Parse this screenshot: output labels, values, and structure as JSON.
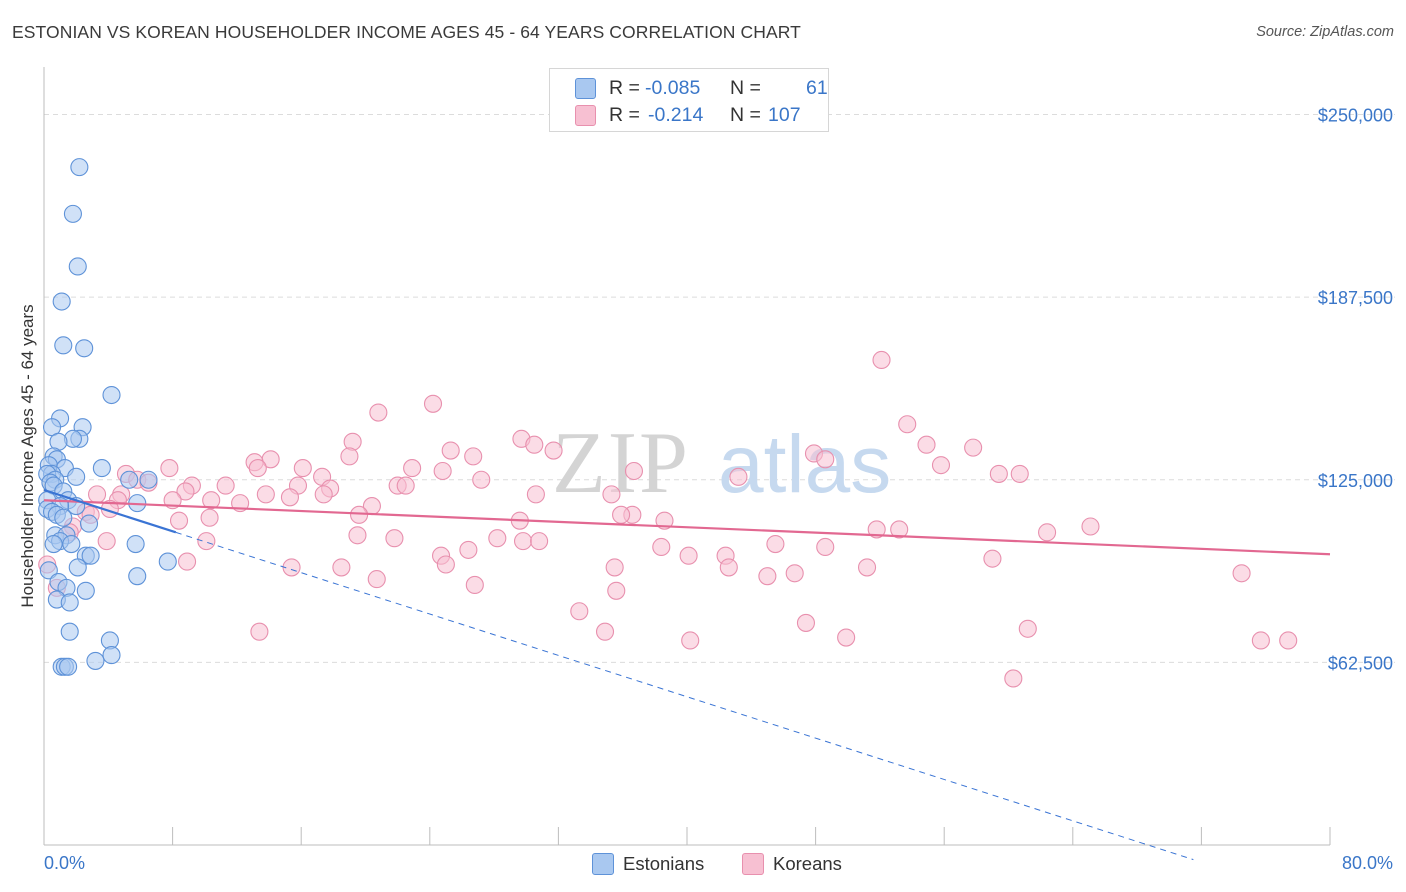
{
  "title": "ESTONIAN VS KOREAN HOUSEHOLDER INCOME AGES 45 - 64 YEARS CORRELATION CHART",
  "source": "Source: ZipAtlas.com",
  "watermark": {
    "zip": "ZIP",
    "atlas": "atlas"
  },
  "legend_top": {
    "rows": [
      {
        "r_label": "R =",
        "r_value": "-0.085",
        "n_label": "N =",
        "n_value": "61"
      },
      {
        "r_label": "R =",
        "r_value": "-0.214",
        "n_label": "N =",
        "n_value": "107"
      }
    ]
  },
  "legend_bottom": {
    "estonians": "Estonians",
    "koreans": "Koreans"
  },
  "colors": {
    "estonian_fill": "#a9c8f0",
    "estonian_stroke": "#5e92d8",
    "estonian_line": "#3a74d4",
    "korean_fill": "#f7c0d2",
    "korean_stroke": "#e890ae",
    "korean_line": "#e26891",
    "tick_label": "#3a76c8",
    "grid": "#dcdcdc"
  },
  "chart_data": {
    "type": "scatter",
    "title": "ESTONIAN VS KOREAN HOUSEHOLDER INCOME AGES 45 - 64 YEARS CORRELATION CHART",
    "xlabel": "",
    "ylabel": "Householder Income Ages 45 - 64 years",
    "xlim": [
      0,
      80
    ],
    "ylim": [
      0,
      262500
    ],
    "x_tick_labels": [
      "0.0%",
      "80.0%"
    ],
    "y_ticks": [
      62500,
      125000,
      187500,
      250000
    ],
    "y_tick_labels": [
      "$62,500",
      "$125,000",
      "$187,500",
      "$250,000"
    ],
    "grid": true,
    "legend_position": "top-center",
    "series": [
      {
        "name": "Estonians",
        "r": -0.085,
        "n": 61,
        "trend_solid": {
          "x": [
            0,
            8.2
          ],
          "y": [
            121500,
            107000
          ]
        },
        "trend_dashed": {
          "x": [
            8.2,
            71.5
          ],
          "y": [
            107000,
            -5000
          ]
        },
        "points": [
          [
            2.2,
            232000
          ],
          [
            1.8,
            216000
          ],
          [
            2.1,
            198000
          ],
          [
            1.1,
            186000
          ],
          [
            1.2,
            171000
          ],
          [
            2.5,
            170000
          ],
          [
            4.2,
            154000
          ],
          [
            1.0,
            146000
          ],
          [
            0.5,
            143000
          ],
          [
            2.4,
            143000
          ],
          [
            2.2,
            139000
          ],
          [
            1.8,
            139000
          ],
          [
            0.9,
            138000
          ],
          [
            0.6,
            133000
          ],
          [
            0.8,
            132000
          ],
          [
            0.3,
            130000
          ],
          [
            1.3,
            129000
          ],
          [
            3.6,
            129000
          ],
          [
            0.5,
            127000
          ],
          [
            0.2,
            127000
          ],
          [
            2.0,
            126000
          ],
          [
            0.7,
            125000
          ],
          [
            5.3,
            125000
          ],
          [
            6.5,
            125000
          ],
          [
            0.4,
            124000
          ],
          [
            0.6,
            123000
          ],
          [
            1.2,
            121000
          ],
          [
            0.2,
            118000
          ],
          [
            1.5,
            118000
          ],
          [
            2.0,
            116000
          ],
          [
            1.0,
            116000
          ],
          [
            5.8,
            117000
          ],
          [
            0.2,
            115000
          ],
          [
            0.5,
            114000
          ],
          [
            0.8,
            113000
          ],
          [
            1.2,
            112000
          ],
          [
            2.8,
            110000
          ],
          [
            0.7,
            106000
          ],
          [
            1.4,
            106000
          ],
          [
            1.0,
            104000
          ],
          [
            0.6,
            103000
          ],
          [
            1.7,
            103000
          ],
          [
            5.7,
            103000
          ],
          [
            2.6,
            99000
          ],
          [
            2.9,
            99000
          ],
          [
            7.7,
            97000
          ],
          [
            2.1,
            95000
          ],
          [
            0.3,
            94000
          ],
          [
            5.8,
            92000
          ],
          [
            0.9,
            90000
          ],
          [
            1.4,
            88000
          ],
          [
            2.6,
            87000
          ],
          [
            0.8,
            84000
          ],
          [
            1.6,
            83000
          ],
          [
            1.6,
            73000
          ],
          [
            4.1,
            70000
          ],
          [
            4.2,
            65000
          ],
          [
            3.2,
            63000
          ],
          [
            1.1,
            61000
          ],
          [
            1.3,
            61000
          ],
          [
            1.5,
            61000
          ]
        ]
      },
      {
        "name": "Koreans",
        "r": -0.214,
        "n": 107,
        "trend_solid": {
          "x": [
            0,
            80
          ],
          "y": [
            118000,
            99500
          ]
        },
        "points": [
          [
            52.1,
            166000
          ],
          [
            24.2,
            151000
          ],
          [
            20.8,
            148000
          ],
          [
            53.7,
            144000
          ],
          [
            29.7,
            139000
          ],
          [
            19.2,
            138000
          ],
          [
            30.5,
            137000
          ],
          [
            54.9,
            137000
          ],
          [
            57.8,
            136000
          ],
          [
            25.3,
            135000
          ],
          [
            31.7,
            135000
          ],
          [
            47.9,
            134000
          ],
          [
            26.7,
            133000
          ],
          [
            19.0,
            133000
          ],
          [
            14.1,
            132000
          ],
          [
            48.6,
            132000
          ],
          [
            13.1,
            131000
          ],
          [
            55.8,
            130000
          ],
          [
            7.8,
            129000
          ],
          [
            13.3,
            129000
          ],
          [
            16.1,
            129000
          ],
          [
            22.9,
            129000
          ],
          [
            24.8,
            128000
          ],
          [
            5.1,
            127000
          ],
          [
            36.7,
            128000
          ],
          [
            60.7,
            127000
          ],
          [
            59.4,
            127000
          ],
          [
            43.2,
            126000
          ],
          [
            17.3,
            126000
          ],
          [
            27.2,
            125000
          ],
          [
            5.8,
            125000
          ],
          [
            6.5,
            124000
          ],
          [
            9.2,
            123000
          ],
          [
            11.3,
            123000
          ],
          [
            15.8,
            123000
          ],
          [
            22.0,
            123000
          ],
          [
            22.5,
            123000
          ],
          [
            17.8,
            122000
          ],
          [
            8.8,
            121000
          ],
          [
            4.8,
            120000
          ],
          [
            3.3,
            120000
          ],
          [
            17.4,
            120000
          ],
          [
            30.6,
            120000
          ],
          [
            35.3,
            120000
          ],
          [
            13.8,
            120000
          ],
          [
            15.3,
            119000
          ],
          [
            8.0,
            118000
          ],
          [
            4.6,
            118000
          ],
          [
            10.4,
            118000
          ],
          [
            12.2,
            117000
          ],
          [
            20.4,
            116000
          ],
          [
            4.1,
            115000
          ],
          [
            2.6,
            114000
          ],
          [
            2.9,
            113000
          ],
          [
            19.6,
            113000
          ],
          [
            36.6,
            113000
          ],
          [
            35.9,
            113000
          ],
          [
            10.3,
            112000
          ],
          [
            8.4,
            111000
          ],
          [
            38.6,
            111000
          ],
          [
            29.6,
            111000
          ],
          [
            1.8,
            109000
          ],
          [
            65.1,
            109000
          ],
          [
            51.8,
            108000
          ],
          [
            53.2,
            108000
          ],
          [
            62.4,
            107000
          ],
          [
            1.6,
            107000
          ],
          [
            19.5,
            106000
          ],
          [
            21.8,
            105000
          ],
          [
            28.2,
            105000
          ],
          [
            29.8,
            104000
          ],
          [
            30.8,
            104000
          ],
          [
            10.1,
            104000
          ],
          [
            3.9,
            104000
          ],
          [
            45.5,
            103000
          ],
          [
            48.6,
            102000
          ],
          [
            38.4,
            102000
          ],
          [
            26.4,
            101000
          ],
          [
            40.1,
            99000
          ],
          [
            42.4,
            99000
          ],
          [
            24.7,
            99000
          ],
          [
            59.0,
            98000
          ],
          [
            8.9,
            97000
          ],
          [
            15.4,
            95000
          ],
          [
            35.5,
            95000
          ],
          [
            51.2,
            95000
          ],
          [
            42.6,
            95000
          ],
          [
            25.0,
            96000
          ],
          [
            18.5,
            95000
          ],
          [
            45.0,
            92000
          ],
          [
            35.6,
            87000
          ],
          [
            74.5,
            93000
          ],
          [
            20.7,
            91000
          ],
          [
            26.8,
            89000
          ],
          [
            46.7,
            93000
          ],
          [
            0.2,
            96000
          ],
          [
            33.3,
            80000
          ],
          [
            47.4,
            76000
          ],
          [
            61.2,
            74000
          ],
          [
            13.4,
            73000
          ],
          [
            34.9,
            73000
          ],
          [
            40.2,
            70000
          ],
          [
            0.8,
            88000
          ],
          [
            49.9,
            71000
          ],
          [
            75.7,
            70000
          ],
          [
            77.4,
            70000
          ],
          [
            60.3,
            57000
          ]
        ]
      }
    ]
  }
}
